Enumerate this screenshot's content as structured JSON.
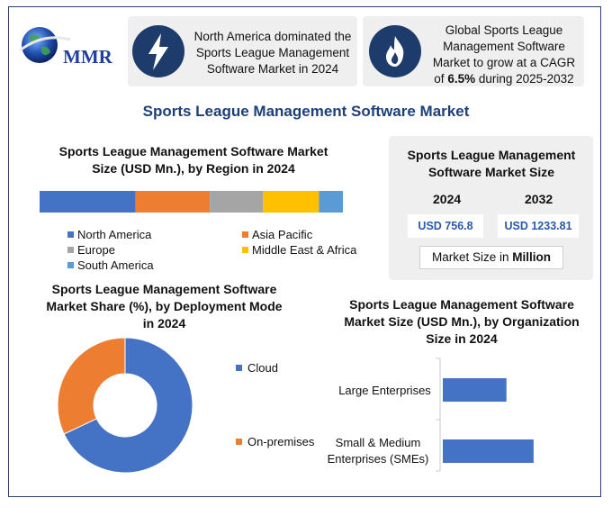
{
  "logo": {
    "text": "MMR"
  },
  "callouts": [
    {
      "icon": "lightning-icon",
      "text": "North America dominated the Sports League Management Software Market in 2024"
    },
    {
      "icon": "flame-icon",
      "text_before": "Global Sports League Management Software Market to grow at a CAGR of ",
      "highlight": "6.5%",
      "text_after": " during 2025-2032"
    }
  ],
  "title": "Sports League Management Software Market",
  "region_chart": {
    "title": "Sports League Management Software Market Size (USD Mn.), by Region in 2024"
  },
  "market_size": {
    "title": "Sports League Management Software Market Size",
    "year_1": "2024",
    "year_2": "2032",
    "value_1": "USD 756.8",
    "value_2": "USD 1233.81",
    "unit_prefix": "Market Size in ",
    "unit_bold": "Million"
  },
  "deployment_chart": {
    "title": "Sports League Management Software Market Share (%), by Deployment Mode in 2024"
  },
  "org_chart": {
    "title": "Sports League Management Software Market Size (USD Mn.), by Organization Size in 2024"
  },
  "colors": {
    "blue": "#4472c4",
    "orange": "#ed7d31",
    "gray": "#a5a5a5",
    "yellow": "#ffc000",
    "light_blue": "#5b9bd5",
    "title_blue": "#1f3f78",
    "icon_bg": "#1d3b6b"
  },
  "chart_data": [
    {
      "type": "bar",
      "orientation": "horizontal-stacked-100",
      "series": [
        {
          "name": "North America",
          "values": [
            36
          ]
        },
        {
          "name": "Asia Pacific",
          "values": [
            28
          ]
        },
        {
          "name": "Europe",
          "values": [
            20
          ]
        },
        {
          "name": "Middle East & Africa",
          "values": [
            21
          ]
        },
        {
          "name": "South America",
          "values": [
            9
          ]
        }
      ],
      "legend": "bottom"
    },
    {
      "type": "pie",
      "donut": true,
      "slices": [
        {
          "name": "Cloud",
          "value": 68
        },
        {
          "name": "On-premises",
          "value": 32
        }
      ],
      "legend": "right"
    },
    {
      "type": "bar",
      "orientation": "horizontal",
      "categories": [
        "Large Enterprises",
        "Small & Medium Enterprises (SMEs)"
      ],
      "values": [
        68,
        97
      ],
      "xlim": [
        0,
        100
      ],
      "grid": false
    }
  ]
}
